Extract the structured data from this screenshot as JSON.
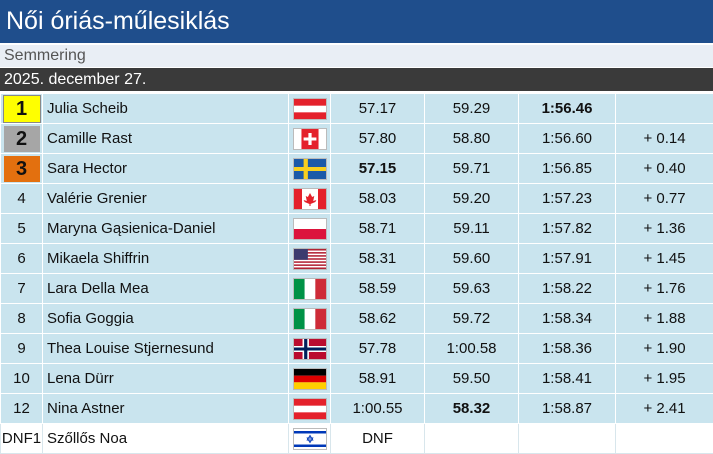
{
  "title": "Női óriás-műlesiklás",
  "venue": "Semmering",
  "date": "2025. december 27.",
  "rows": [
    {
      "rank": "1",
      "name": "Julia Scheib",
      "flag": "austria-flag-icon",
      "run1": "57.17",
      "run2": "59.29",
      "total": "1:56.46",
      "diff": ""
    },
    {
      "rank": "2",
      "name": "Camille Rast",
      "flag": "switzerland-flag-icon",
      "run1": "57.80",
      "run2": "58.80",
      "total": "1:56.60",
      "diff": "+ 0.14"
    },
    {
      "rank": "3",
      "name": "Sara Hector",
      "flag": "sweden-flag-icon",
      "run1": "57.15",
      "run2": "59.71",
      "total": "1:56.85",
      "diff": "+ 0.40"
    },
    {
      "rank": "4",
      "name": "Valérie Grenier",
      "flag": "canada-flag-icon",
      "run1": "58.03",
      "run2": "59.20",
      "total": "1:57.23",
      "diff": "+ 0.77"
    },
    {
      "rank": "5",
      "name": "Maryna Gąsienica-Daniel",
      "flag": "poland-flag-icon",
      "run1": "58.71",
      "run2": "59.11",
      "total": "1:57.82",
      "diff": "+ 1.36"
    },
    {
      "rank": "6",
      "name": "Mikaela Shiffrin",
      "flag": "usa-flag-icon",
      "run1": "58.31",
      "run2": "59.60",
      "total": "1:57.91",
      "diff": "+ 1.45"
    },
    {
      "rank": "7",
      "name": "Lara Della Mea",
      "flag": "italy-flag-icon",
      "run1": "58.59",
      "run2": "59.63",
      "total": "1:58.22",
      "diff": "+ 1.76"
    },
    {
      "rank": "8",
      "name": "Sofia Goggia",
      "flag": "italy-flag-icon",
      "run1": "58.62",
      "run2": "59.72",
      "total": "1:58.34",
      "diff": "+ 1.88"
    },
    {
      "rank": "9",
      "name": "Thea Louise Stjernesund",
      "flag": "norway-flag-icon",
      "run1": "57.78",
      "run2": "1:00.58",
      "total": "1:58.36",
      "diff": "+ 1.90"
    },
    {
      "rank": "10",
      "name": "Lena Dürr",
      "flag": "germany-flag-icon",
      "run1": "58.91",
      "run2": "59.50",
      "total": "1:58.41",
      "diff": "+ 1.95"
    },
    {
      "rank": "12",
      "name": "Nina Astner",
      "flag": "austria-flag-icon",
      "run1": "1:00.55",
      "run2": "58.32",
      "total": "1:58.87",
      "diff": "+ 2.41"
    },
    {
      "rank": "DNF1",
      "name": "Szőllős Noa",
      "flag": "israel-flag-icon",
      "run1": "DNF",
      "run2": "",
      "total": "",
      "diff": ""
    }
  ],
  "colors": {
    "title_bg": "#1f4e8c",
    "alt_row": "#c9e4ee",
    "gold": "#ffff00",
    "silver": "#a6a6a6",
    "bronze": "#e3700f"
  }
}
